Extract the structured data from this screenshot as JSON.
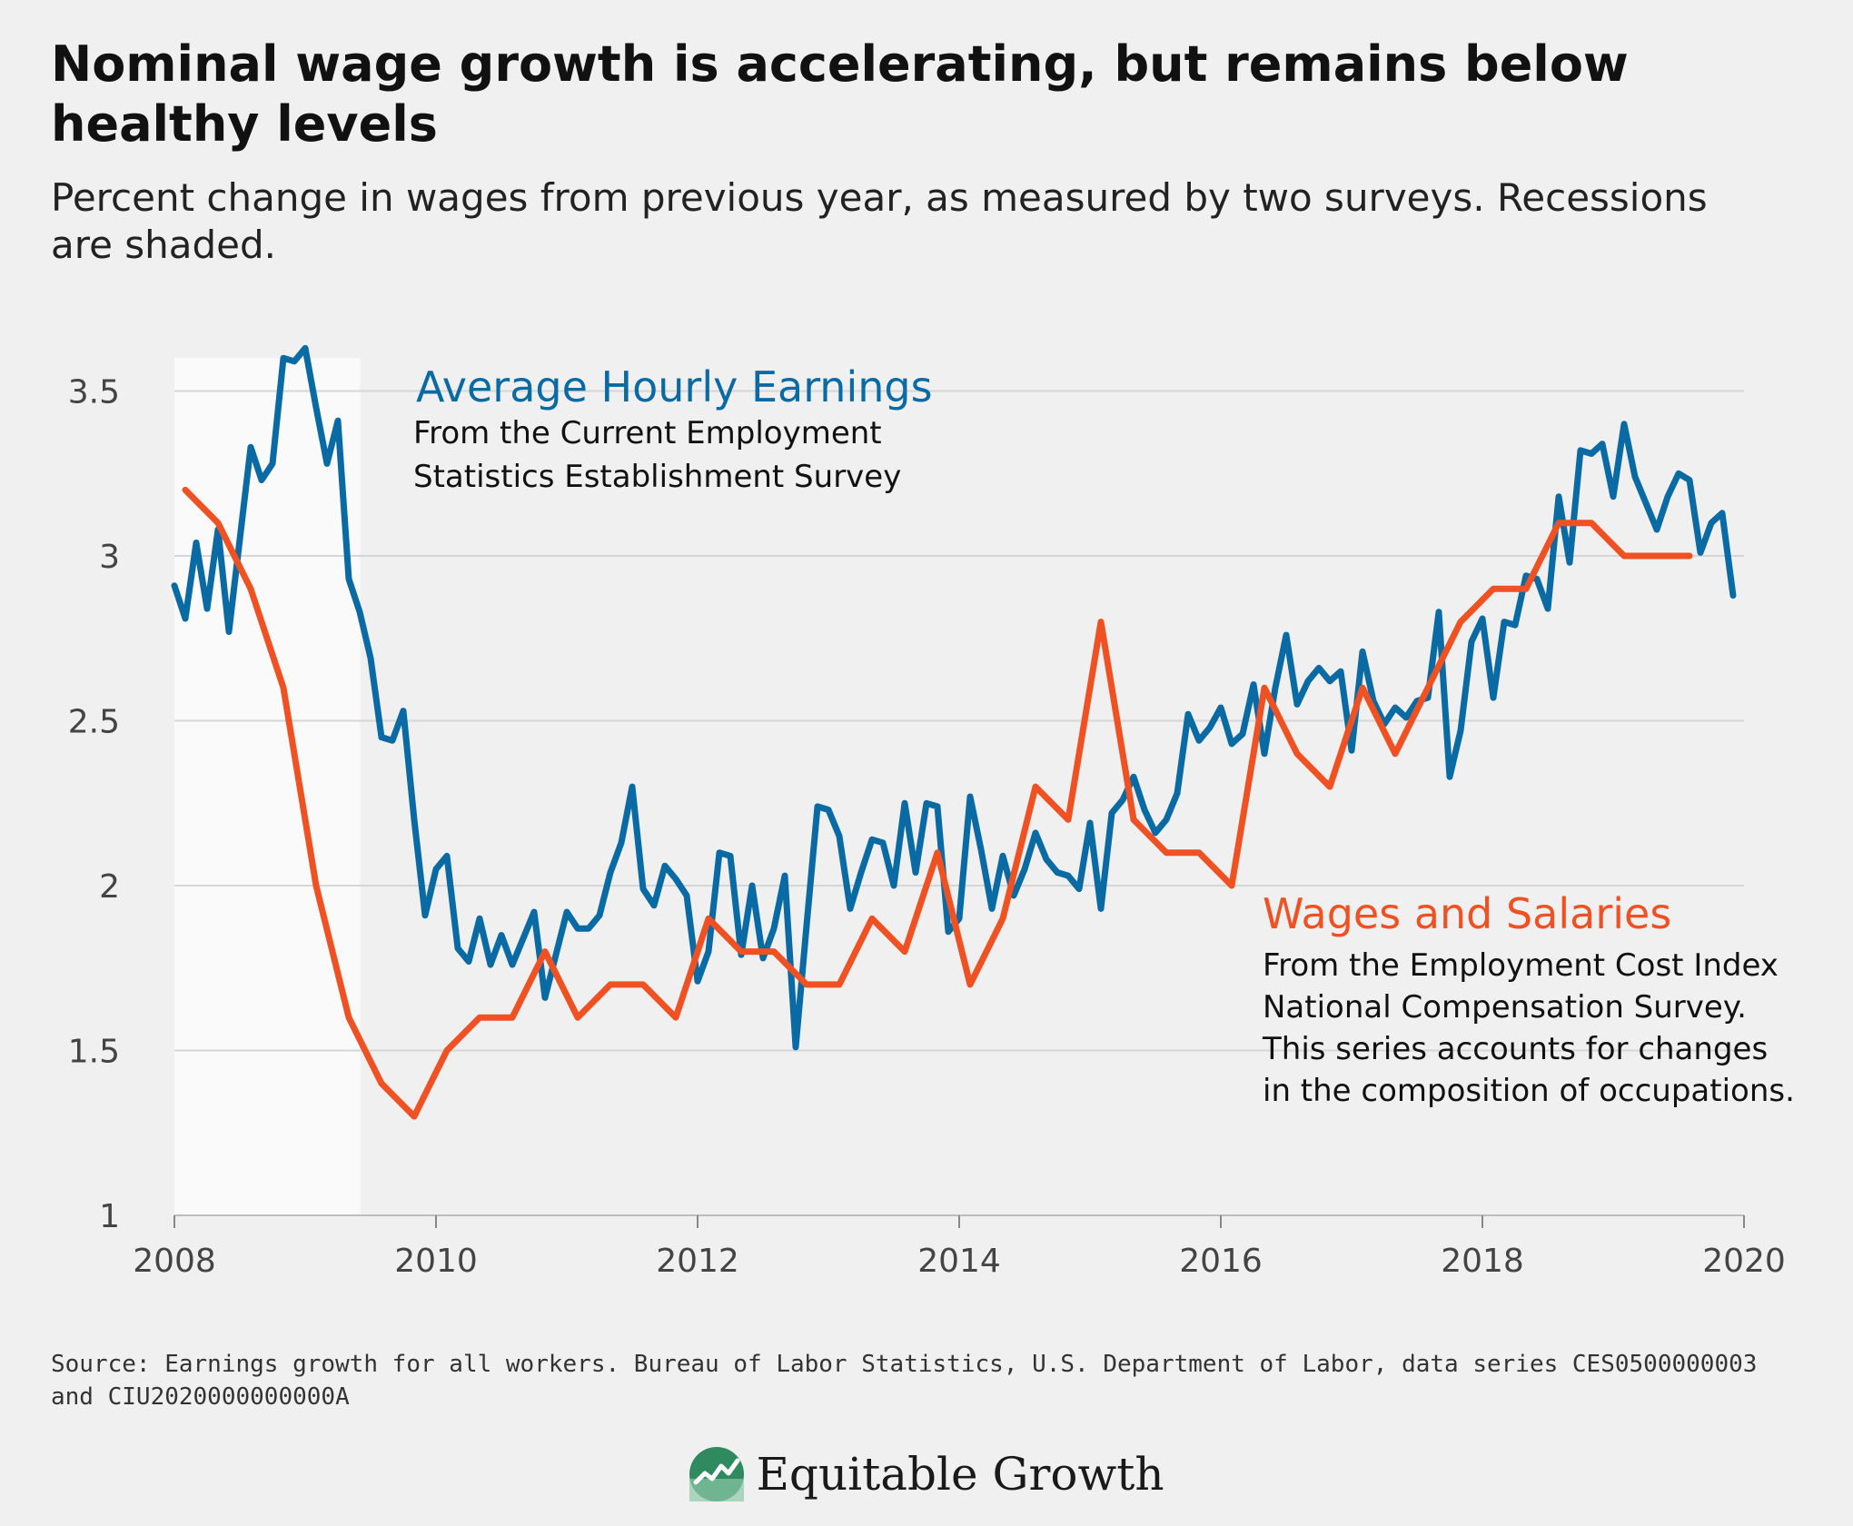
{
  "title": "Nominal wage growth is accelerating, but remains below healthy levels",
  "subtitle": "Percent change in wages from previous year, as measured by two surveys. Recessions are shaded.",
  "source": "Source: Earnings growth for all workers. Bureau of Labor Statistics, U.S. Department of Labor, data series CES0500000003 and CIU2020000000000A",
  "brand": {
    "name": "Equitable Growth",
    "logo_icon": "growth-line-circle-icon"
  },
  "colors": {
    "ahe": "#0a6aa3",
    "wages": "#f05123",
    "recession": "#fafafa",
    "grid": "#d6d6d6"
  },
  "annotations": {
    "ahe": {
      "title": "Average Hourly Earnings",
      "lines": [
        "From the Current Employment",
        "Statistics Establishment Survey"
      ]
    },
    "wages": {
      "title": "Wages and Salaries",
      "lines": [
        "From the Employment Cost Index",
        "National Compensation Survey.",
        "This series accounts for changes",
        "in the composition of occupations."
      ]
    }
  },
  "chart_data": {
    "type": "line",
    "title": "Nominal wage growth is accelerating, but remains below healthy levels",
    "xlabel": "",
    "ylabel": "",
    "xlim": [
      2008,
      2020
    ],
    "ylim": [
      1,
      3.6
    ],
    "x_ticks": [
      "2008",
      "2010",
      "2012",
      "2014",
      "2016",
      "2018",
      "2020"
    ],
    "y_ticks": [
      "1",
      "1.5",
      "2",
      "2.5",
      "3",
      "3.5"
    ],
    "grid": "horizontal",
    "recessions": [
      {
        "start": 2008.0,
        "end": 2009.42
      }
    ],
    "series": [
      {
        "name": "Average Hourly Earnings",
        "color": "#0a6aa3",
        "x": [
          2008.0,
          2008.083,
          2008.167,
          2008.25,
          2008.333,
          2008.417,
          2008.5,
          2008.583,
          2008.667,
          2008.75,
          2008.833,
          2008.917,
          2009.0,
          2009.083,
          2009.167,
          2009.25,
          2009.333,
          2009.417,
          2009.5,
          2009.583,
          2009.667,
          2009.75,
          2009.833,
          2009.917,
          2010.0,
          2010.083,
          2010.167,
          2010.25,
          2010.333,
          2010.417,
          2010.5,
          2010.583,
          2010.667,
          2010.75,
          2010.833,
          2010.917,
          2011.0,
          2011.083,
          2011.167,
          2011.25,
          2011.333,
          2011.417,
          2011.5,
          2011.583,
          2011.667,
          2011.75,
          2011.833,
          2011.917,
          2012.0,
          2012.083,
          2012.167,
          2012.25,
          2012.333,
          2012.417,
          2012.5,
          2012.583,
          2012.667,
          2012.75,
          2012.833,
          2012.917,
          2013.0,
          2013.083,
          2013.167,
          2013.25,
          2013.333,
          2013.417,
          2013.5,
          2013.583,
          2013.667,
          2013.75,
          2013.833,
          2013.917,
          2014.0,
          2014.083,
          2014.167,
          2014.25,
          2014.333,
          2014.417,
          2014.5,
          2014.583,
          2014.667,
          2014.75,
          2014.833,
          2014.917,
          2015.0,
          2015.083,
          2015.167,
          2015.25,
          2015.333,
          2015.417,
          2015.5,
          2015.583,
          2015.667,
          2015.75,
          2015.833,
          2015.917,
          2016.0,
          2016.083,
          2016.167,
          2016.25,
          2016.333,
          2016.417,
          2016.5,
          2016.583,
          2016.667,
          2016.75,
          2016.833,
          2016.917,
          2017.0,
          2017.083,
          2017.167,
          2017.25,
          2017.333,
          2017.417,
          2017.5,
          2017.583,
          2017.667,
          2017.75,
          2017.833,
          2017.917,
          2018.0,
          2018.083,
          2018.167,
          2018.25,
          2018.333,
          2018.417,
          2018.5,
          2018.583,
          2018.667,
          2018.75,
          2018.833,
          2018.917,
          2019.0,
          2019.083,
          2019.167,
          2019.25,
          2019.333,
          2019.417,
          2019.5,
          2019.583,
          2019.667,
          2019.75,
          2019.833,
          2019.917
        ],
        "values": [
          2.91,
          2.81,
          3.04,
          2.84,
          3.08,
          2.77,
          3.05,
          3.33,
          3.23,
          3.28,
          3.6,
          3.59,
          3.63,
          3.45,
          3.28,
          3.41,
          2.93,
          2.83,
          2.69,
          2.45,
          2.44,
          2.53,
          2.2,
          1.91,
          2.05,
          2.09,
          1.81,
          1.77,
          1.9,
          1.76,
          1.85,
          1.76,
          1.84,
          1.92,
          1.66,
          1.79,
          1.92,
          1.87,
          1.87,
          1.91,
          2.04,
          2.13,
          2.3,
          1.99,
          1.94,
          2.06,
          2.02,
          1.97,
          1.71,
          1.8,
          2.1,
          2.09,
          1.79,
          2.0,
          1.78,
          1.87,
          2.03,
          1.51,
          1.88,
          2.24,
          2.23,
          2.15,
          1.93,
          2.04,
          2.14,
          2.13,
          2.0,
          2.25,
          2.04,
          2.25,
          2.24,
          1.86,
          1.9,
          2.27,
          2.11,
          1.93,
          2.09,
          1.97,
          2.05,
          2.16,
          2.08,
          2.04,
          2.03,
          1.99,
          2.19,
          1.93,
          2.22,
          2.26,
          2.33,
          2.23,
          2.16,
          2.2,
          2.28,
          2.52,
          2.44,
          2.48,
          2.54,
          2.43,
          2.46,
          2.61,
          2.4,
          2.6,
          2.76,
          2.55,
          2.62,
          2.66,
          2.62,
          2.65,
          2.41,
          2.71,
          2.56,
          2.49,
          2.54,
          2.51,
          2.56,
          2.57,
          2.83,
          2.33,
          2.47,
          2.74,
          2.81,
          2.57,
          2.8,
          2.79,
          2.94,
          2.93,
          2.84,
          3.18,
          2.98,
          3.32,
          3.31,
          3.34,
          3.18,
          3.4,
          3.24,
          3.16,
          3.08,
          3.18,
          3.25,
          3.23,
          3.01,
          3.1,
          3.13,
          2.88
        ]
      },
      {
        "name": "Wages and Salaries",
        "color": "#f05123",
        "x": [
          2008.083,
          2008.333,
          2008.583,
          2008.833,
          2009.083,
          2009.333,
          2009.583,
          2009.833,
          2010.083,
          2010.333,
          2010.583,
          2010.833,
          2011.083,
          2011.333,
          2011.583,
          2011.833,
          2012.083,
          2012.333,
          2012.583,
          2012.833,
          2013.083,
          2013.333,
          2013.583,
          2013.833,
          2014.083,
          2014.333,
          2014.583,
          2014.833,
          2015.083,
          2015.333,
          2015.583,
          2015.833,
          2016.083,
          2016.333,
          2016.583,
          2016.833,
          2017.083,
          2017.333,
          2017.583,
          2017.833,
          2018.083,
          2018.333,
          2018.583,
          2018.833,
          2019.083,
          2019.333,
          2019.583
        ],
        "values": [
          3.2,
          3.1,
          2.9,
          2.6,
          2.0,
          1.6,
          1.4,
          1.3,
          1.5,
          1.6,
          1.6,
          1.8,
          1.6,
          1.7,
          1.7,
          1.6,
          1.9,
          1.8,
          1.8,
          1.7,
          1.7,
          1.9,
          1.8,
          2.1,
          1.7,
          1.9,
          2.3,
          2.2,
          2.8,
          2.2,
          2.1,
          2.1,
          2.0,
          2.6,
          2.4,
          2.3,
          2.6,
          2.4,
          2.6,
          2.8,
          2.9,
          2.9,
          3.1,
          3.1,
          3.0,
          3.0,
          3.0
        ]
      }
    ]
  }
}
